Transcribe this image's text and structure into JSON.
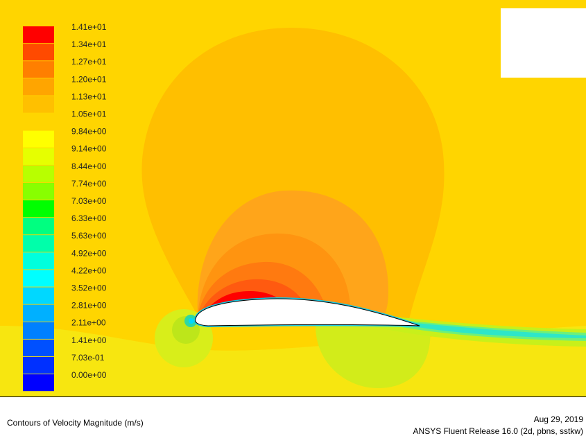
{
  "legend": {
    "labels": [
      "1.41e+01",
      "1.34e+01",
      "1.27e+01",
      "1.20e+01",
      "1.13e+01",
      "1.05e+01",
      "9.84e+00",
      "9.14e+00",
      "8.44e+00",
      "7.74e+00",
      "7.03e+00",
      "6.33e+00",
      "5.63e+00",
      "4.92e+00",
      "4.22e+00",
      "3.52e+00",
      "2.81e+00",
      "2.11e+00",
      "1.41e+00",
      "7.03e-01",
      "0.00e+00"
    ],
    "colors": [
      "#ff0000",
      "#ff4a00",
      "#ff7f00",
      "#ffa500",
      "#ffc000",
      "#ffd500",
      "#ffff00",
      "#e6ff00",
      "#b8ff00",
      "#88ff00",
      "#00ff00",
      "#00ff80",
      "#00ffaa",
      "#00ffdd",
      "#00ffff",
      "#00d8ff",
      "#00b0ff",
      "#0080ff",
      "#0050ff",
      "#0030ff",
      "#0000ff"
    ]
  },
  "colors": {
    "background_field": "#ffd500",
    "outer_bubble": "#ffbf00",
    "mid_ring": "#ff9f1a",
    "inner_ring": "#ff7f1a",
    "peak": "#ff0000",
    "low_lobe": "#b8f21a",
    "wake": "#2ee6c8",
    "airfoil": "#ffffff"
  },
  "footer": {
    "title": "Contours of Velocity Magnitude (m/s)",
    "date": "Aug 29, 2019",
    "version": "ANSYS Fluent Release 16.0 (2d, pbns, sstkw)"
  }
}
